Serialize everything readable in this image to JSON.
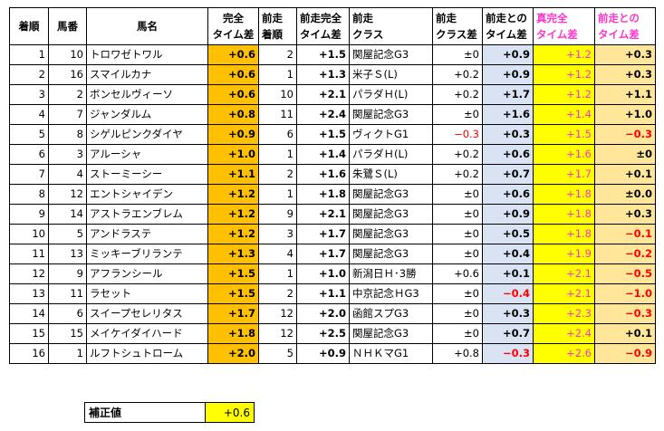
{
  "headers": {
    "finish": "着順",
    "horse_no": "馬番",
    "horse_name": "馬名",
    "time_diff": [
      "完全",
      "タイム差"
    ],
    "prev_finish": [
      "前走",
      "着順"
    ],
    "prev_time_diff": [
      "前走完全",
      "タイム差"
    ],
    "prev_class": [
      "前走",
      "クラス"
    ],
    "prev_class_diff": [
      "前走",
      "クラス差"
    ],
    "vs_prev": [
      "前走との",
      "タイム差"
    ],
    "true_time_diff": [
      "真完全",
      "タイム差"
    ],
    "vs_prev_true": [
      "前走との",
      "タイム差"
    ]
  },
  "rows": [
    {
      "finish": "1",
      "no": "10",
      "name": "トロワゼトワル",
      "diff": "+0.6",
      "prev_finish": "2",
      "prev_diff": "+1.5",
      "prev_class": "関屋記念G3",
      "class_diff": "±0",
      "vs_prev": "+0.9",
      "true_diff": "+1.2",
      "vs_true": "+0.3"
    },
    {
      "finish": "2",
      "no": "16",
      "name": "スマイルカナ",
      "diff": "+0.6",
      "prev_finish": "1",
      "prev_diff": "+1.3",
      "prev_class": "米子Ｓ(L)",
      "class_diff": "+0.2",
      "vs_prev": "+0.9",
      "true_diff": "+1.2",
      "vs_true": "+0.3"
    },
    {
      "finish": "3",
      "no": "2",
      "name": "ボンセルヴィーソ",
      "diff": "+0.6",
      "prev_finish": "10",
      "prev_diff": "+2.1",
      "prev_class": "パラダＨ(L)",
      "class_diff": "+0.2",
      "vs_prev": "+1.7",
      "true_diff": "+1.2",
      "vs_true": "+1.1"
    },
    {
      "finish": "4",
      "no": "7",
      "name": "ジャンダルム",
      "diff": "+0.8",
      "prev_finish": "11",
      "prev_diff": "+2.4",
      "prev_class": "関屋記念G3",
      "class_diff": "±0",
      "vs_prev": "+1.6",
      "true_diff": "+1.4",
      "vs_true": "+1.0"
    },
    {
      "finish": "5",
      "no": "8",
      "name": "シゲルピンクダイヤ",
      "diff": "+0.9",
      "prev_finish": "6",
      "prev_diff": "+1.5",
      "prev_class": "ヴィクトG1",
      "class_diff": "−0.3",
      "class_diff_red": true,
      "vs_prev": "+0.3",
      "true_diff": "+1.5",
      "vs_true": "−0.3",
      "vs_true_red": true
    },
    {
      "finish": "6",
      "no": "3",
      "name": "アルーシャ",
      "diff": "+1.0",
      "prev_finish": "1",
      "prev_diff": "+1.4",
      "prev_class": "パラダＨ(L)",
      "class_diff": "+0.2",
      "vs_prev": "+0.6",
      "true_diff": "+1.6",
      "vs_true": "±0"
    },
    {
      "finish": "7",
      "no": "4",
      "name": "ストーミーシー",
      "diff": "+1.1",
      "prev_finish": "2",
      "prev_diff": "+1.6",
      "prev_class": "朱鷺Ｓ(L)",
      "class_diff": "+0.2",
      "vs_prev": "+0.7",
      "true_diff": "+1.7",
      "vs_true": "+0.1"
    },
    {
      "finish": "8",
      "no": "12",
      "name": "エントシャイデン",
      "diff": "+1.2",
      "prev_finish": "1",
      "prev_diff": "+1.8",
      "prev_class": "関屋記念G3",
      "class_diff": "±0",
      "vs_prev": "+0.6",
      "true_diff": "+1.8",
      "vs_true": "±0.0"
    },
    {
      "finish": "9",
      "no": "14",
      "name": "アストラエンブレム",
      "diff": "+1.2",
      "prev_finish": "9",
      "prev_diff": "+2.1",
      "prev_class": "関屋記念G3",
      "class_diff": "±0",
      "vs_prev": "+0.9",
      "true_diff": "+1.8",
      "vs_true": "+0.3"
    },
    {
      "finish": "10",
      "no": "5",
      "name": "アンドラステ",
      "diff": "+1.2",
      "prev_finish": "3",
      "prev_diff": "+1.7",
      "prev_class": "関屋記念G3",
      "class_diff": "±0",
      "vs_prev": "+0.5",
      "true_diff": "+1.8",
      "vs_true": "−0.1",
      "vs_true_red": true
    },
    {
      "finish": "11",
      "no": "13",
      "name": "ミッキーブリランテ",
      "diff": "+1.3",
      "prev_finish": "4",
      "prev_diff": "+1.7",
      "prev_class": "関屋記念G3",
      "class_diff": "±0",
      "vs_prev": "+0.4",
      "true_diff": "+1.9",
      "vs_true": "−0.2",
      "vs_true_red": true
    },
    {
      "finish": "12",
      "no": "9",
      "name": "アフランシール",
      "diff": "+1.5",
      "prev_finish": "1",
      "prev_diff": "+1.0",
      "prev_class": "新潟日Ｈ･3勝",
      "class_diff": "+0.6",
      "vs_prev": "+0.1",
      "true_diff": "+2.1",
      "vs_true": "−0.5",
      "vs_true_red": true
    },
    {
      "finish": "13",
      "no": "11",
      "name": "ラセット",
      "diff": "+1.5",
      "prev_finish": "2",
      "prev_diff": "+1.1",
      "prev_class": "中京記念ＨG3",
      "class_diff": "±0",
      "vs_prev": "−0.4",
      "vs_prev_red": true,
      "true_diff": "+2.1",
      "vs_true": "−1.0",
      "vs_true_red": true
    },
    {
      "finish": "14",
      "no": "6",
      "name": "スイープセレリタス",
      "diff": "+1.7",
      "prev_finish": "12",
      "prev_diff": "+2.0",
      "prev_class": "函館スプG3",
      "class_diff": "±0",
      "vs_prev": "+0.3",
      "true_diff": "+2.3",
      "vs_true": "−0.3",
      "vs_true_red": true
    },
    {
      "finish": "15",
      "no": "15",
      "name": "メイケイダイハード",
      "diff": "+1.8",
      "prev_finish": "12",
      "prev_diff": "+2.5",
      "prev_class": "関屋記念G3",
      "class_diff": "±0",
      "vs_prev": "+0.7",
      "true_diff": "+2.4",
      "vs_true": "+0.1"
    },
    {
      "finish": "16",
      "no": "1",
      "name": "ルフトシュトローム",
      "diff": "+2.0",
      "prev_finish": "5",
      "prev_diff": "+0.9",
      "prev_class": "ＮＨＫマG1",
      "class_diff": "+0.8",
      "vs_prev": "−0.3",
      "vs_prev_red": true,
      "true_diff": "+2.6",
      "vs_true": "−0.9",
      "vs_true_red": true
    }
  ],
  "correction": {
    "label": "補正値",
    "value": "+0.6"
  },
  "colors": {
    "time_diff_bg": "#ffc000",
    "vs_prev_bg": "#dae3f3",
    "true_diff_bg": "#ffff00",
    "true_diff_text": "#ff33cc",
    "vs_true_bg": "#ffe699",
    "negative": "#ff0000"
  }
}
